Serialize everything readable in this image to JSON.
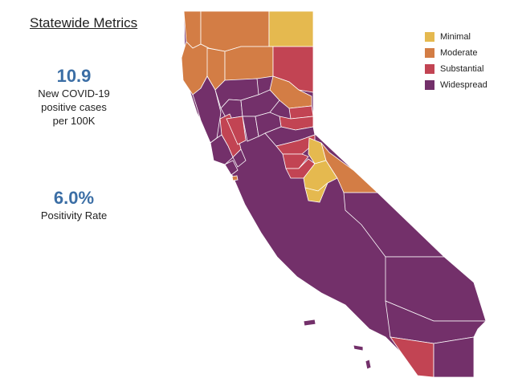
{
  "title": "Statewide Metrics",
  "metrics": [
    {
      "value": "10.9",
      "label_lines": [
        "New COVID-19",
        "positive cases",
        "per 100K"
      ]
    },
    {
      "value": "6.0%",
      "label_lines": [
        "Positivity Rate"
      ]
    }
  ],
  "legend": [
    {
      "tier": "minimal",
      "label": "Minimal",
      "color": "#e5b94f"
    },
    {
      "tier": "moderate",
      "label": "Moderate",
      "color": "#d37d45"
    },
    {
      "tier": "substantial",
      "label": "Substantial",
      "color": "#c24453"
    },
    {
      "tier": "widespread",
      "label": "Widespread",
      "color": "#73306a"
    }
  ],
  "map": {
    "state": "California",
    "counties": [
      {
        "name": "Del Norte",
        "tier": "moderate"
      },
      {
        "name": "Siskiyou",
        "tier": "moderate"
      },
      {
        "name": "Modoc",
        "tier": "minimal"
      },
      {
        "name": "Humboldt",
        "tier": "moderate"
      },
      {
        "name": "Trinity",
        "tier": "moderate"
      },
      {
        "name": "Shasta",
        "tier": "moderate"
      },
      {
        "name": "Lassen",
        "tier": "substantial"
      },
      {
        "name": "Plumas",
        "tier": "moderate"
      },
      {
        "name": "Mendocino",
        "tier": "widespread"
      },
      {
        "name": "Tehama",
        "tier": "widespread"
      },
      {
        "name": "Glenn",
        "tier": "widespread"
      },
      {
        "name": "Butte",
        "tier": "widespread"
      },
      {
        "name": "Sierra",
        "tier": "substantial"
      },
      {
        "name": "Nevada",
        "tier": "substantial"
      },
      {
        "name": "Lake",
        "tier": "substantial"
      },
      {
        "name": "Colusa",
        "tier": "substantial"
      },
      {
        "name": "Sutter",
        "tier": "widespread"
      },
      {
        "name": "Yuba",
        "tier": "widespread"
      },
      {
        "name": "Placer",
        "tier": "widespread"
      },
      {
        "name": "El Dorado",
        "tier": "substantial"
      },
      {
        "name": "Alpine",
        "tier": "minimal"
      },
      {
        "name": "Amador",
        "tier": "substantial"
      },
      {
        "name": "Calaveras",
        "tier": "substantial"
      },
      {
        "name": "Tuolumne",
        "tier": "minimal"
      },
      {
        "name": "Mariposa",
        "tier": "minimal"
      },
      {
        "name": "Mono",
        "tier": "moderate"
      },
      {
        "name": "Sonoma",
        "tier": "widespread"
      },
      {
        "name": "Napa",
        "tier": "widespread"
      },
      {
        "name": "Marin",
        "tier": "widespread"
      },
      {
        "name": "San Francisco",
        "tier": "moderate"
      },
      {
        "name": "Inyo",
        "tier": "widespread"
      },
      {
        "name": "San Bernardino",
        "tier": "widespread"
      },
      {
        "name": "Riverside",
        "tier": "widespread"
      },
      {
        "name": "San Diego",
        "tier": "substantial"
      },
      {
        "name": "Imperial",
        "tier": "widespread"
      }
    ]
  }
}
